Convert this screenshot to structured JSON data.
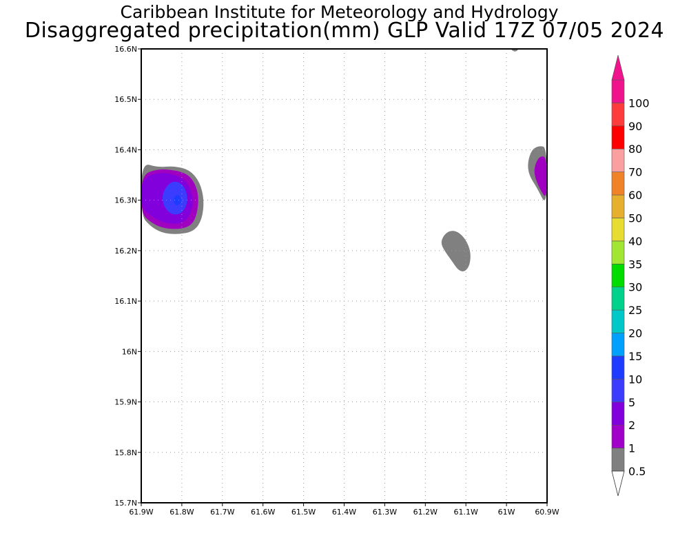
{
  "titles": {
    "line1": "Caribbean Institute for Meteorology and Hydrology",
    "line2": "Disaggregated precipitation(mm) GLP Valid 17Z 07/05 2024"
  },
  "map": {
    "lon_range": [
      -61.9,
      -60.9
    ],
    "lat_range": [
      15.7,
      16.6
    ],
    "grid": "dotted",
    "lon_ticks": [
      {
        "value": -61.9,
        "label": "61.9W"
      },
      {
        "value": -61.8,
        "label": "61.8W"
      },
      {
        "value": -61.7,
        "label": "61.7W"
      },
      {
        "value": -61.6,
        "label": "61.6W"
      },
      {
        "value": -61.5,
        "label": "61.5W"
      },
      {
        "value": -61.4,
        "label": "61.4W"
      },
      {
        "value": -61.3,
        "label": "61.3W"
      },
      {
        "value": -61.2,
        "label": "61.2W"
      },
      {
        "value": -61.1,
        "label": "61.1W"
      },
      {
        "value": -61.0,
        "label": "61W"
      },
      {
        "value": -60.9,
        "label": "60.9W"
      }
    ],
    "lat_ticks": [
      {
        "value": 15.7,
        "label": "15.7N"
      },
      {
        "value": 15.8,
        "label": "15.8N"
      },
      {
        "value": 15.9,
        "label": "15.9N"
      },
      {
        "value": 16.0,
        "label": "16N"
      },
      {
        "value": 16.1,
        "label": "16.1N"
      },
      {
        "value": 16.2,
        "label": "16.2N"
      },
      {
        "value": 16.3,
        "label": "16.3N"
      },
      {
        "value": 16.4,
        "label": "16.4N"
      },
      {
        "value": 16.5,
        "label": "16.5N"
      },
      {
        "value": 16.6,
        "label": "16.6N"
      }
    ],
    "precip_areas": [
      {
        "id": "west",
        "level": 0.5,
        "color": "#808080",
        "polygon": [
          [
            -61.9,
            16.375
          ],
          [
            -61.86,
            16.365
          ],
          [
            -61.82,
            16.368
          ],
          [
            -61.78,
            16.36
          ],
          [
            -61.755,
            16.335
          ],
          [
            -61.745,
            16.3
          ],
          [
            -61.75,
            16.262
          ],
          [
            -61.77,
            16.238
          ],
          [
            -61.81,
            16.232
          ],
          [
            -61.85,
            16.235
          ],
          [
            -61.88,
            16.25
          ],
          [
            -61.9,
            16.27
          ]
        ]
      },
      {
        "id": "west",
        "level": 1,
        "color": "#a000c0",
        "polygon": [
          [
            -61.9,
            16.35
          ],
          [
            -61.86,
            16.362
          ],
          [
            -61.82,
            16.36
          ],
          [
            -61.785,
            16.352
          ],
          [
            -61.765,
            16.33
          ],
          [
            -61.758,
            16.3
          ],
          [
            -61.765,
            16.265
          ],
          [
            -61.78,
            16.248
          ],
          [
            -61.81,
            16.242
          ],
          [
            -61.85,
            16.245
          ],
          [
            -61.88,
            16.258
          ],
          [
            -61.9,
            16.275
          ]
        ]
      },
      {
        "id": "west",
        "level": 2,
        "color": "#8200dc",
        "polygon": [
          [
            -61.9,
            16.342
          ],
          [
            -61.86,
            16.355
          ],
          [
            -61.82,
            16.352
          ],
          [
            -61.79,
            16.34
          ],
          [
            -61.775,
            16.315
          ],
          [
            -61.772,
            16.29
          ],
          [
            -61.785,
            16.262
          ],
          [
            -61.81,
            16.252
          ],
          [
            -61.845,
            16.255
          ],
          [
            -61.875,
            16.268
          ],
          [
            -61.9,
            16.285
          ]
        ]
      },
      {
        "id": "west",
        "level": 5,
        "color": "#3c3cff",
        "polygon": [
          [
            -61.845,
            16.318
          ],
          [
            -61.83,
            16.335
          ],
          [
            -61.81,
            16.338
          ],
          [
            -61.792,
            16.325
          ],
          [
            -61.785,
            16.302
          ],
          [
            -61.793,
            16.28
          ],
          [
            -61.812,
            16.27
          ],
          [
            -61.832,
            16.275
          ],
          [
            -61.845,
            16.29
          ],
          [
            -61.848,
            16.305
          ]
        ]
      },
      {
        "id": "west",
        "level": 10,
        "color": "#1e3cff",
        "polygon": [
          [
            -61.822,
            16.3
          ],
          [
            -61.816,
            16.31
          ],
          [
            -61.806,
            16.31
          ],
          [
            -61.8,
            16.3
          ],
          [
            -61.806,
            16.29
          ],
          [
            -61.816,
            16.29
          ]
        ]
      },
      {
        "id": "center",
        "level": 0.5,
        "color": "#808080",
        "polygon": [
          [
            -61.155,
            16.23
          ],
          [
            -61.14,
            16.24
          ],
          [
            -61.12,
            16.238
          ],
          [
            -61.1,
            16.222
          ],
          [
            -61.088,
            16.198
          ],
          [
            -61.09,
            16.172
          ],
          [
            -61.102,
            16.158
          ],
          [
            -61.118,
            16.16
          ],
          [
            -61.135,
            16.18
          ],
          [
            -61.153,
            16.2
          ],
          [
            -61.162,
            16.215
          ]
        ]
      },
      {
        "id": "east",
        "level": 0.5,
        "color": "#808080",
        "polygon": [
          [
            -60.9,
            16.405
          ],
          [
            -60.92,
            16.408
          ],
          [
            -60.938,
            16.4
          ],
          [
            -60.948,
            16.375
          ],
          [
            -60.945,
            16.35
          ],
          [
            -60.925,
            16.325
          ],
          [
            -60.9,
            16.285
          ]
        ]
      },
      {
        "id": "east",
        "level": 1,
        "color": "#a000c0",
        "polygon": [
          [
            -60.9,
            16.385
          ],
          [
            -60.918,
            16.388
          ],
          [
            -60.93,
            16.37
          ],
          [
            -60.932,
            16.35
          ],
          [
            -60.918,
            16.322
          ],
          [
            -60.9,
            16.3
          ]
        ]
      },
      {
        "id": "top",
        "level": 0.5,
        "color": "#808080",
        "polygon": [
          [
            -60.99,
            16.6
          ],
          [
            -60.983,
            16.595
          ],
          [
            -60.975,
            16.595
          ],
          [
            -60.97,
            16.6
          ]
        ]
      }
    ]
  },
  "colorbar": {
    "levels": [
      {
        "label": "0.5",
        "color": "#808080"
      },
      {
        "label": "1",
        "color": "#a000c8"
      },
      {
        "label": "2",
        "color": "#8200dc"
      },
      {
        "label": "5",
        "color": "#3c3cff"
      },
      {
        "label": "10",
        "color": "#1e3cff"
      },
      {
        "label": "15",
        "color": "#00a0ff"
      },
      {
        "label": "20",
        "color": "#00c8c8"
      },
      {
        "label": "25",
        "color": "#00d28c"
      },
      {
        "label": "30",
        "color": "#00dc00"
      },
      {
        "label": "35",
        "color": "#a0e632"
      },
      {
        "label": "40",
        "color": "#e6dc32"
      },
      {
        "label": "50",
        "color": "#e6af2d"
      },
      {
        "label": "60",
        "color": "#f08228"
      },
      {
        "label": "70",
        "color": "#faa0a0"
      },
      {
        "label": "80",
        "color": "#ff0000"
      },
      {
        "label": "90",
        "color": "#ff3c3c"
      },
      {
        "label": "100",
        "color": "#f0148c"
      }
    ],
    "under_color": "#ffffff",
    "over_color": "#f0148c"
  }
}
